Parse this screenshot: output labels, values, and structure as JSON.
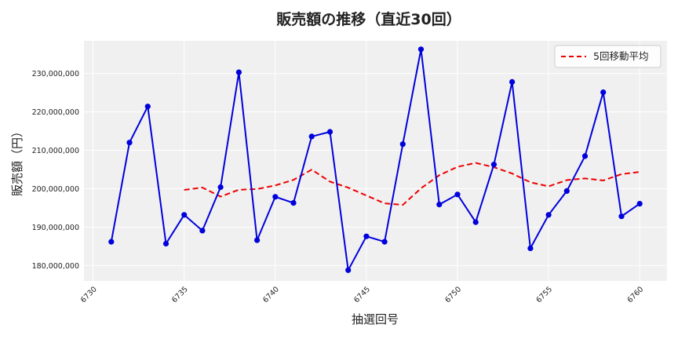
{
  "chart_data": {
    "type": "line",
    "title": "販売額の推移（直近30回）",
    "xlabel": "抽選回号",
    "ylabel": "販売額（円）",
    "xlim": [
      6729.5,
      6761.5
    ],
    "ylim": [
      176000000,
      238500000
    ],
    "xticks": [
      6730,
      6735,
      6740,
      6745,
      6750,
      6755,
      6760
    ],
    "yticks": [
      180000000,
      190000000,
      200000000,
      210000000,
      220000000,
      230000000
    ],
    "ytick_labels": [
      "180,000,000",
      "190,000,000",
      "200,000,000",
      "210,000,000",
      "220,000,000",
      "230,000,000"
    ],
    "grid": true,
    "legend_position": "top-right",
    "colors": {
      "sales": "#0000dd",
      "moving_avg": "#ee0000",
      "plot_bg": "#f0f0f0",
      "grid": "#ffffff"
    },
    "x": [
      6731,
      6732,
      6733,
      6734,
      6735,
      6736,
      6737,
      6738,
      6739,
      6740,
      6741,
      6742,
      6743,
      6744,
      6745,
      6746,
      6747,
      6748,
      6749,
      6750,
      6751,
      6752,
      6753,
      6754,
      6755,
      6756,
      6757,
      6758,
      6759,
      6760
    ],
    "series": [
      {
        "key": "sales",
        "style": "solid-markers",
        "values": [
          186200000,
          212000000,
          221400000,
          185700000,
          193200000,
          189100000,
          200400000,
          230300000,
          186600000,
          197900000,
          196300000,
          213600000,
          214800000,
          178800000,
          187600000,
          186200000,
          211600000,
          236300000,
          195900000,
          198500000,
          191300000,
          206300000,
          227800000,
          184500000,
          193200000,
          199400000,
          208500000,
          225100000,
          192800000,
          196100000
        ]
      },
      {
        "key": "moving_avg",
        "name": "5回移動平均",
        "style": "dashed",
        "values": [
          null,
          null,
          null,
          null,
          199700000,
          200300000,
          197960000,
          199740000,
          199920000,
          200860000,
          202300000,
          204960000,
          201840000,
          200280000,
          198220000,
          196200000,
          195800000,
          200100000,
          203520000,
          205700000,
          206720000,
          205600000,
          203960000,
          201680000,
          200620000,
          202240000,
          202680000,
          202140000,
          203800000,
          204380000
        ]
      }
    ]
  }
}
